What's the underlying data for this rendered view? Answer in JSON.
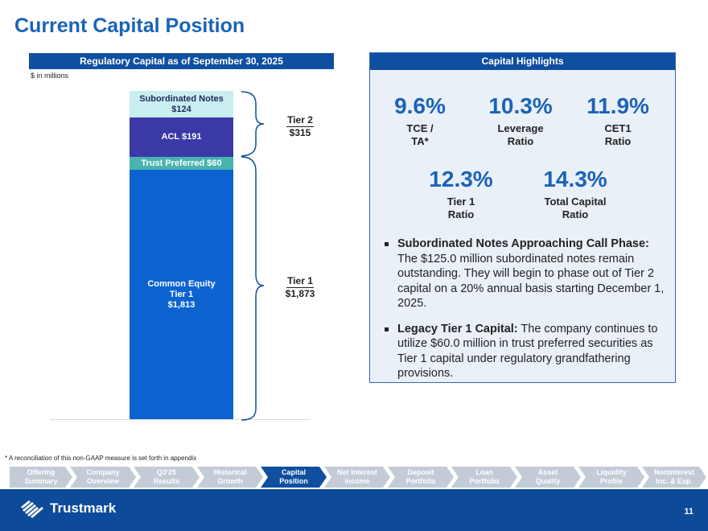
{
  "title": "Current Capital Position",
  "left_panel": {
    "header": "Regulatory Capital as of September 30, 2025",
    "units": "$ in millions",
    "segments": {
      "subordinated_notes": {
        "label": "Subordinated Notes",
        "value": "$124",
        "amount": 124
      },
      "acl": {
        "label": "ACL $191",
        "amount": 191
      },
      "trust_preferred": {
        "label": "Trust Preferred $60",
        "amount": 60
      },
      "common_equity": {
        "label": "Common Equity",
        "label2": "Tier 1",
        "value": "$1,813",
        "amount": 1813
      }
    },
    "tier2": {
      "name": "Tier 2",
      "value": "$315"
    },
    "tier1": {
      "name": "Tier 1",
      "value": "$1,873"
    }
  },
  "right_panel": {
    "header": "Capital Highlights",
    "metrics": [
      {
        "value": "9.6%",
        "label": "TCE /\nTA*"
      },
      {
        "value": "10.3%",
        "label": "Leverage\nRatio"
      },
      {
        "value": "11.9%",
        "label": "CET1\nRatio"
      },
      {
        "value": "12.3%",
        "label": "Tier 1\nRatio"
      },
      {
        "value": "14.3%",
        "label": "Total Capital\nRatio"
      }
    ],
    "bullets": [
      {
        "heading": "Subordinated Notes Approaching Call Phase:",
        "text": " The $125.0 million subordinated notes remain outstanding. They will begin to phase out of Tier 2 capital on a 20% annual basis starting December 1, 2025."
      },
      {
        "heading": "Legacy Tier 1 Capital:",
        "text": " The company continues to utilize $60.0 million in trust preferred securities as Tier 1 capital under regulatory grandfathering provisions."
      }
    ]
  },
  "footnote": "* A reconciliation of this non-GAAP measure is set forth in appendix",
  "nav": [
    {
      "line1": "Offering",
      "line2": "Summary",
      "active": false
    },
    {
      "line1": "Company",
      "line2": "Overview",
      "active": false
    },
    {
      "line1": "Q3'25",
      "line2": "Results",
      "active": false
    },
    {
      "line1": "Historical",
      "line2": "Growth",
      "active": false
    },
    {
      "line1": "Capital",
      "line2": "Position",
      "active": true
    },
    {
      "line1": "Net Interest",
      "line2": "Income",
      "active": false
    },
    {
      "line1": "Deposit",
      "line2": "Portfolio",
      "active": false
    },
    {
      "line1": "Loan",
      "line2": "Portfolio",
      "active": false
    },
    {
      "line1": "Asset",
      "line2": "Quality",
      "active": false
    },
    {
      "line1": "Liquidity",
      "line2": "Profile",
      "active": false
    },
    {
      "line1": "Noninterest",
      "line2": "Inc. & Exp.",
      "active": false
    }
  ],
  "footer": {
    "logo_text": "Trustmark",
    "page_number": "11"
  },
  "colors": {
    "brand_blue": "#0f4fa0",
    "accent_blue": "#1a63b8",
    "sub_notes": "#c9eef2",
    "acl": "#3b39a8",
    "trust_preferred": "#48b3b0",
    "common_equity": "#0c63d0",
    "nav_inactive": "#c3cbd6"
  },
  "icons": {
    "logo": "trustmark-logo-icon",
    "bullet": "square-bullet-icon",
    "brace": "curly-brace-icon"
  }
}
